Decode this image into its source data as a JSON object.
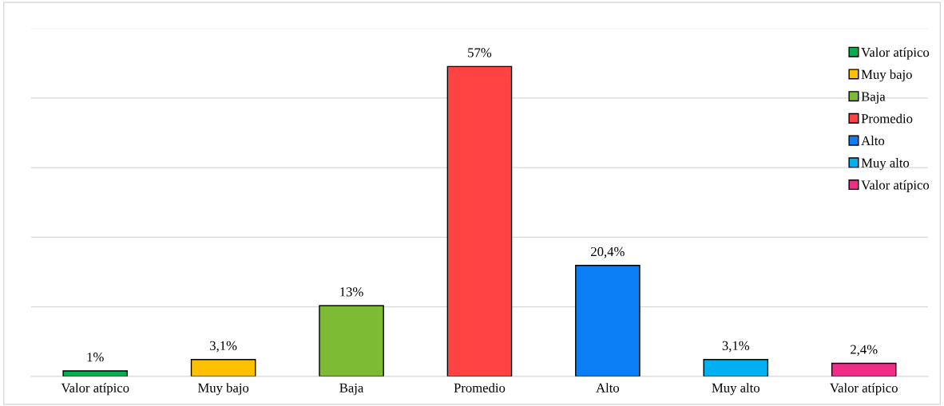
{
  "chart_data": {
    "type": "bar",
    "categories": [
      "Valor atípico",
      "Muy bajo",
      "Baja",
      "Promedio",
      "Alto",
      "Muy alto",
      "Valor atípico"
    ],
    "series": [
      {
        "name": "Valor atípico",
        "color": "#00b050",
        "values": [
          1,
          null,
          null,
          null,
          null,
          null,
          null
        ],
        "value_labels": [
          "1%",
          null,
          null,
          null,
          null,
          null,
          null
        ]
      },
      {
        "name": "Muy bajo",
        "color": "#ffc000",
        "values": [
          null,
          3.1,
          null,
          null,
          null,
          null,
          null
        ],
        "value_labels": [
          null,
          "3,1%",
          null,
          null,
          null,
          null,
          null
        ]
      },
      {
        "name": "Baja",
        "color": "#7cbb33",
        "values": [
          null,
          null,
          13,
          null,
          null,
          null,
          null
        ],
        "value_labels": [
          null,
          null,
          "13%",
          null,
          null,
          null,
          null
        ]
      },
      {
        "name": "Promedio",
        "color": "#ff4343",
        "values": [
          null,
          null,
          null,
          57,
          null,
          null,
          null
        ],
        "value_labels": [
          null,
          null,
          null,
          "57%",
          null,
          null,
          null
        ]
      },
      {
        "name": "Alto",
        "color": "#0a7ef5",
        "values": [
          null,
          null,
          null,
          null,
          20.4,
          null,
          null
        ],
        "value_labels": [
          null,
          null,
          null,
          null,
          "20,4%",
          null,
          null
        ]
      },
      {
        "name": "Muy alto",
        "color": "#00b0f0",
        "values": [
          null,
          null,
          null,
          null,
          null,
          3.1,
          null
        ],
        "value_labels": [
          null,
          null,
          null,
          null,
          null,
          "3,1%",
          null
        ]
      },
      {
        "name": "Valor atípico",
        "color": "#ee2e88",
        "values": [
          null,
          null,
          null,
          null,
          null,
          null,
          2.4
        ],
        "value_labels": [
          null,
          null,
          null,
          null,
          null,
          null,
          "2,4%"
        ]
      }
    ],
    "ylim": [
      0,
      64
    ],
    "yticks": [
      {
        "value": 0,
        "label": null
      },
      {
        "value": 12.8,
        "label": null
      },
      {
        "value": 25.6,
        "label": null
      },
      {
        "value": 38.4,
        "label": null
      },
      {
        "value": 51.2,
        "label": null
      },
      {
        "value": 64,
        "label": null
      }
    ],
    "tick_labels": "x",
    "grid": "y",
    "legend": "top right",
    "marker": "square"
  }
}
